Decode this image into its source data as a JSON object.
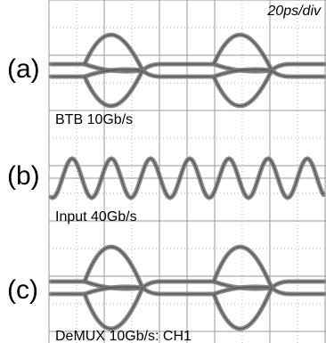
{
  "scale_label": "20ps/div",
  "panels": [
    {
      "label": "(a)",
      "caption": "BTB 10Gb/s"
    },
    {
      "label": "(b)",
      "caption": "Input 40Gb/s"
    },
    {
      "label": "(c)",
      "caption": "DeMUX 10Gb/s: CH1"
    }
  ]
}
